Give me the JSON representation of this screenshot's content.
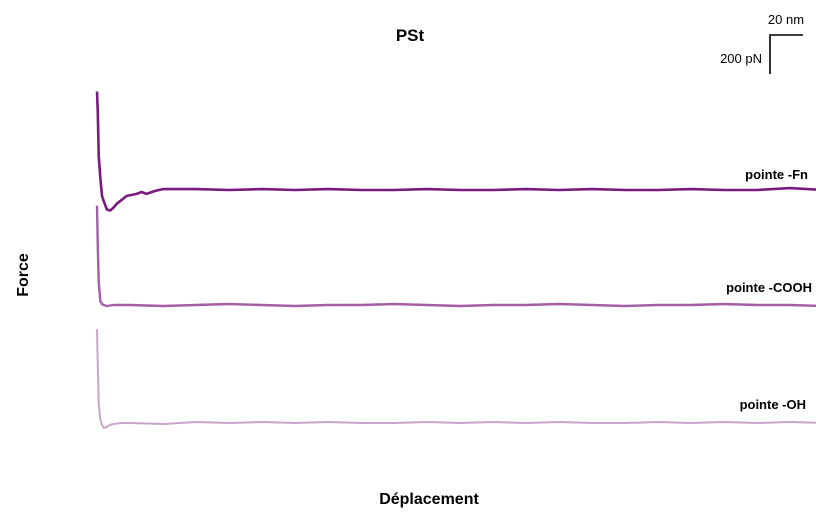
{
  "chart_data": {
    "type": "line",
    "title": "PSt",
    "xlabel": "Déplacement",
    "ylabel": "Force",
    "scale_bar": {
      "x_label": "20 nm",
      "y_label": "200 pN",
      "x_nm": 20,
      "y_pN": 200
    },
    "x_unit": "nm",
    "y_unit": "pN",
    "grid": false,
    "legend": "inline labels at right end of each curve",
    "series": [
      {
        "name": "pointe -Fn",
        "color": "#7a1a80",
        "x": [
          0,
          0.5,
          1,
          2,
          3,
          4,
          6,
          8,
          10,
          12,
          15,
          18,
          21,
          24,
          27,
          30,
          35,
          40,
          50,
          60,
          80,
          100,
          120,
          140,
          160,
          180,
          200,
          220,
          240,
          260,
          280,
          300,
          320,
          340,
          360,
          380,
          400,
          420,
          440,
          460,
          480,
          500,
          520,
          540,
          560
        ],
        "y": [
          510,
          400,
          180,
          70,
          -25,
          -50,
          -95,
          -100,
          -85,
          -65,
          -45,
          -25,
          -20,
          -15,
          -5,
          -15,
          0,
          10,
          10,
          10,
          5,
          10,
          5,
          10,
          5,
          5,
          10,
          5,
          5,
          10,
          5,
          10,
          5,
          5,
          10,
          5,
          5,
          15,
          5,
          5,
          10,
          5,
          10,
          5,
          5
        ]
      },
      {
        "name": "pointe -COOH",
        "color": "#a45ea8",
        "x": [
          0,
          0.5,
          1,
          2,
          3,
          4,
          6,
          10,
          20,
          40,
          60,
          80,
          100,
          120,
          140,
          160,
          180,
          200,
          220,
          240,
          260,
          280,
          300,
          320,
          340,
          360,
          380,
          400,
          420,
          440,
          460,
          480,
          500,
          520,
          540,
          560
        ],
        "y": [
          510,
          300,
          120,
          20,
          5,
          0,
          -5,
          0,
          0,
          -5,
          0,
          5,
          0,
          -5,
          0,
          0,
          5,
          0,
          -5,
          0,
          0,
          5,
          0,
          -5,
          0,
          0,
          5,
          0,
          0,
          -5,
          0,
          5,
          0,
          0,
          -5,
          0
        ]
      },
      {
        "name": "pointe -OH",
        "color": "#c9a5cc",
        "x": [
          0,
          0.5,
          1,
          2,
          3,
          4,
          6,
          8,
          10,
          15,
          20,
          40,
          60,
          80,
          100,
          120,
          140,
          160,
          180,
          200,
          220,
          240,
          260,
          280,
          300,
          320,
          340,
          360,
          380,
          400,
          420,
          440,
          460,
          480,
          500,
          520,
          540,
          560
        ],
        "y": [
          480,
          300,
          100,
          20,
          -10,
          -25,
          -20,
          -10,
          -5,
          0,
          0,
          -5,
          5,
          0,
          5,
          0,
          5,
          0,
          0,
          5,
          0,
          5,
          0,
          5,
          0,
          0,
          5,
          0,
          5,
          0,
          5,
          0,
          5,
          0,
          5,
          0,
          5,
          0
        ]
      }
    ]
  }
}
